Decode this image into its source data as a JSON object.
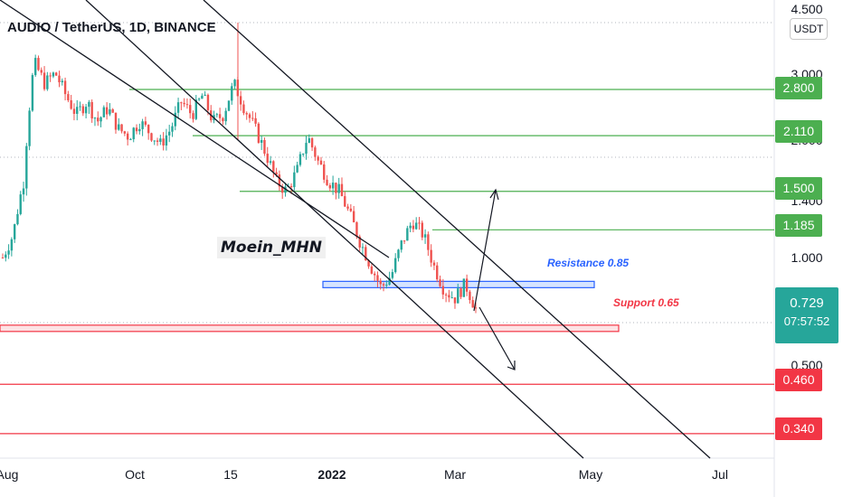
{
  "header": {
    "title": "AUDIO / TetherUS, 1D, BINANCE",
    "currency_button": "USDT"
  },
  "watermark": "Moein_MHN",
  "annotations": {
    "resistance_label": "Resistance 0.85",
    "support_label": "Support 0.65"
  },
  "current_price": {
    "price": "0.729",
    "countdown": "07:57:52",
    "color": "#26a69a"
  },
  "colors": {
    "green_level": "#4caf50",
    "red_level": "#f23645",
    "resistance": "#2962ff",
    "candle_up": "#26a69a",
    "candle_down": "#ef5350"
  },
  "chart_data": {
    "type": "candlestick",
    "title": "AUDIO / TetherUS, 1D, BINANCE",
    "y_scale": "log",
    "y_ticks": [
      "4.500",
      "3.000",
      "2.000",
      "1.400",
      "1.000",
      "0.500"
    ],
    "x_ticks": [
      "Aug",
      "Oct",
      "15",
      "2022",
      "Mar",
      "May",
      "Jul"
    ],
    "ylim": [
      0.3,
      4.6
    ],
    "grid": false,
    "horizontal_levels": [
      {
        "label": "2.800",
        "value": 2.8,
        "kind": "green"
      },
      {
        "label": "2.110",
        "value": 2.11,
        "kind": "green"
      },
      {
        "label": "1.500",
        "value": 1.5,
        "kind": "green"
      },
      {
        "label": "1.185",
        "value": 1.185,
        "kind": "green"
      },
      {
        "label": "0.460",
        "value": 0.46,
        "kind": "red"
      },
      {
        "label": "0.340",
        "value": 0.34,
        "kind": "red"
      }
    ],
    "zones": [
      {
        "name": "Resistance 0.85",
        "value": 0.85,
        "color": "#2962ff"
      },
      {
        "name": "Support 0.65",
        "value": 0.65,
        "color": "#f23645"
      }
    ],
    "price_path": [
      1.0,
      1.15,
      1.6,
      3.3,
      2.9,
      3.1,
      2.7,
      2.4,
      2.6,
      2.3,
      2.5,
      2.2,
      2.1,
      2.3,
      2.15,
      2.0,
      2.2,
      2.6,
      2.4,
      2.7,
      2.3,
      2.4,
      2.9,
      2.5,
      2.2,
      1.9,
      1.6,
      1.5,
      1.7,
      2.1,
      1.8,
      1.6,
      1.5,
      1.3,
      1.1,
      0.95,
      0.83,
      0.9,
      1.1,
      1.25,
      1.15,
      0.95,
      0.82,
      0.78,
      0.85,
      0.73
    ]
  }
}
